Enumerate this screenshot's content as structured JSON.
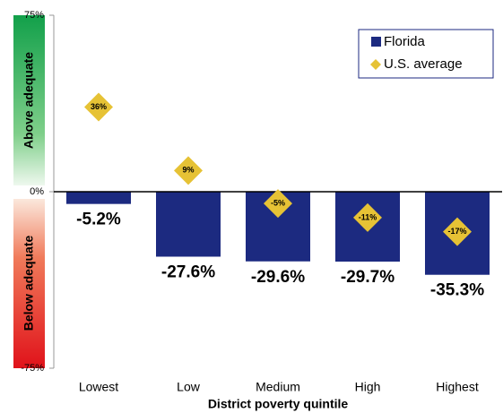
{
  "chart_data": {
    "type": "bar",
    "x_label": "District poverty quintile",
    "annotations": [
      "Above adequate",
      "Below adequate"
    ],
    "categories": [
      "Lowest",
      "Low",
      "Medium",
      "High",
      "Highest"
    ],
    "series": [
      {
        "name": "Florida",
        "type": "bar",
        "color": "#1c2a80",
        "values": [
          -5.2,
          -27.6,
          -29.6,
          -29.7,
          -35.3
        ],
        "value_labels": [
          "-5.2%",
          "-27.6%",
          "-29.6%",
          "-29.7%",
          "-35.3%"
        ]
      },
      {
        "name": "U.S. average",
        "type": "diamond",
        "color": "#e6c235",
        "values": [
          36,
          9,
          -5,
          -11,
          -17
        ],
        "value_labels": [
          "36%",
          "9%",
          "-5%",
          "-11%",
          "-17%"
        ]
      }
    ],
    "ylim": [
      -75,
      75
    ],
    "yticks": [
      {
        "value": 75,
        "label": "75%"
      },
      {
        "value": 0,
        "label": "0%"
      },
      {
        "value": -75,
        "label": "-75%"
      }
    ],
    "legend": "top-right"
  }
}
